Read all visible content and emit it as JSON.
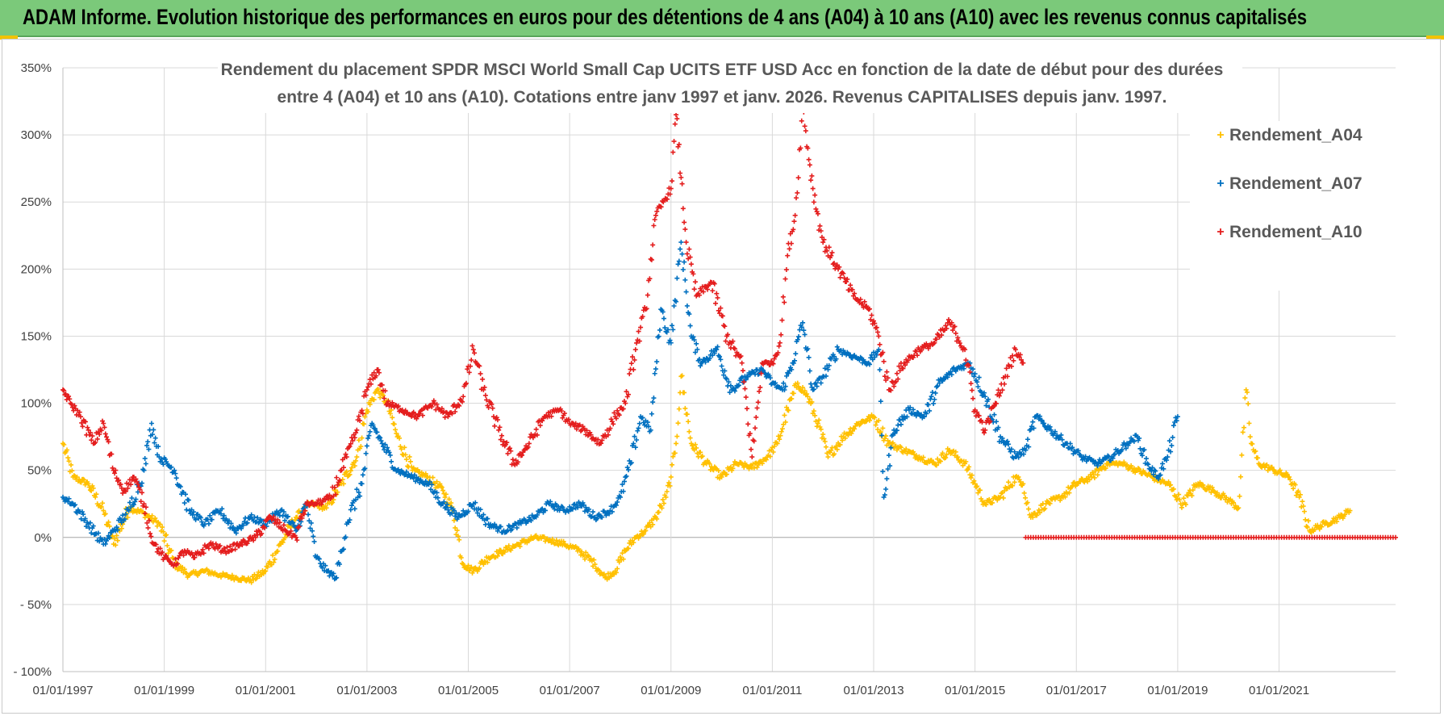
{
  "banner": {
    "title": "ADAM Informe. Evolution historique des performances en euros pour des détentions de 4 ans (A04) à 10 ans (A10) avec les revenus connus capitalisés"
  },
  "chart_data": {
    "type": "scatter",
    "title_line1": "Rendement du placement SPDR MSCI World Small Cap UCITS ETF USD Acc en fonction de la date de début pour des durées",
    "title_line2": "entre 4 (A04) et 10 ans (A10).  Cotations entre janv 1997 et janv. 2026. Revenus CAPITALISES depuis janv. 1997.",
    "xlabel": "",
    "ylabel": "",
    "xlim": [
      1997.0,
      2023.3
    ],
    "ylim": [
      -100,
      350
    ],
    "y_ticks": [
      -100,
      -50,
      0,
      50,
      100,
      150,
      200,
      250,
      300,
      350
    ],
    "y_tick_labels": [
      "- 100%",
      "- 50%",
      "0%",
      "50%",
      "100%",
      "150%",
      "200%",
      "250%",
      "300%",
      "350%"
    ],
    "x_ticks": [
      1997,
      1999,
      2001,
      2003,
      2005,
      2007,
      2009,
      2011,
      2013,
      2015,
      2017,
      2019,
      2021
    ],
    "x_tick_labels": [
      "01/01/1997",
      "01/01/1999",
      "01/01/2001",
      "01/01/2003",
      "01/01/2005",
      "01/01/2007",
      "01/01/2009",
      "01/01/2011",
      "01/01/2013",
      "01/01/2015",
      "01/01/2017",
      "01/01/2019",
      "01/01/2021"
    ],
    "grid": true,
    "legend_position": "top-right",
    "series": [
      {
        "name": "Rendement_A04",
        "color": "#ffc000",
        "x": [
          1997.0,
          1997.2,
          1997.5,
          1997.8,
          1998.0,
          1998.3,
          1998.6,
          1998.9,
          1999.2,
          1999.5,
          1999.8,
          2000.1,
          2000.4,
          2000.7,
          2001.0,
          2001.3,
          2001.6,
          2001.9,
          2002.2,
          2002.5,
          2002.8,
          2003.0,
          2003.2,
          2003.4,
          2003.6,
          2003.9,
          2004.2,
          2004.5,
          2004.7,
          2004.9,
          2005.1,
          2005.4,
          2005.7,
          2006.0,
          2006.3,
          2006.6,
          2006.9,
          2007.2,
          2007.5,
          2007.7,
          2007.9,
          2008.1,
          2008.3,
          2008.5,
          2008.7,
          2008.9,
          2009.0,
          2009.1,
          2009.2,
          2009.4,
          2009.7,
          2010.0,
          2010.3,
          2010.6,
          2010.9,
          2011.1,
          2011.3,
          2011.5,
          2011.7,
          2011.9,
          2012.1,
          2012.4,
          2012.7,
          2013.0,
          2013.3,
          2013.6,
          2013.9,
          2014.2,
          2014.5,
          2014.8,
          2015.0,
          2015.2,
          2015.5,
          2015.8,
          2015.95,
          2016.1,
          2016.4,
          2016.7,
          2017.0,
          2017.3,
          2017.6,
          2017.9,
          2018.2,
          2018.5,
          2018.8,
          2019.1,
          2019.4,
          2019.7,
          2020.0,
          2020.2,
          2020.35,
          2020.45,
          2020.6,
          2020.9,
          2021.2,
          2021.4,
          2021.6,
          2021.9,
          2022.2,
          2022.4
        ],
        "y": [
          70,
          45,
          40,
          20,
          -5,
          22,
          18,
          10,
          -20,
          -28,
          -25,
          -28,
          -30,
          -32,
          -25,
          -5,
          15,
          25,
          22,
          40,
          60,
          95,
          110,
          100,
          75,
          50,
          45,
          35,
          20,
          -20,
          -25,
          -15,
          -10,
          -5,
          0,
          -2,
          -5,
          -10,
          -20,
          -30,
          -25,
          -10,
          0,
          5,
          15,
          30,
          45,
          70,
          120,
          70,
          55,
          45,
          55,
          52,
          60,
          70,
          95,
          115,
          105,
          85,
          60,
          75,
          85,
          90,
          70,
          65,
          60,
          55,
          65,
          55,
          40,
          25,
          30,
          45,
          40,
          15,
          25,
          30,
          40,
          45,
          55,
          55,
          50,
          45,
          40,
          25,
          40,
          35,
          28,
          22,
          110,
          70,
          55,
          50,
          45,
          30,
          5,
          10,
          15,
          20
        ]
      },
      {
        "name": "Rendement_A07",
        "color": "#0070c0",
        "x": [
          1997.0,
          1997.2,
          1997.5,
          1997.8,
          1998.0,
          1998.3,
          1998.6,
          1998.75,
          1998.9,
          1999.2,
          1999.5,
          1999.8,
          2000.1,
          2000.4,
          2000.7,
          2001.0,
          2001.3,
          2001.6,
          2001.8,
          2002.0,
          2002.2,
          2002.4,
          2002.6,
          2002.9,
          2003.1,
          2003.3,
          2003.6,
          2003.9,
          2004.2,
          2004.5,
          2004.8,
          2005.1,
          2005.4,
          2005.7,
          2006.0,
          2006.3,
          2006.6,
          2006.9,
          2007.2,
          2007.5,
          2007.8,
          2008.0,
          2008.2,
          2008.4,
          2008.6,
          2008.8,
          2009.0,
          2009.2,
          2009.4,
          2009.6,
          2009.9,
          2010.2,
          2010.5,
          2010.8,
          2011.0,
          2011.2,
          2011.4,
          2011.6,
          2011.8,
          2012.0,
          2012.3,
          2012.6,
          2012.9,
          2013.1,
          2013.2,
          2013.4,
          2013.7,
          2014.0,
          2014.3,
          2014.6,
          2014.9,
          2015.2,
          2015.5,
          2015.8,
          2016.0,
          2016.2,
          2016.5,
          2016.8,
          2017.1,
          2017.4,
          2017.7,
          2018.0,
          2018.2,
          2018.4,
          2018.6,
          2018.8,
          2019.0
        ],
        "y": [
          30,
          25,
          10,
          -5,
          5,
          20,
          50,
          85,
          60,
          50,
          20,
          10,
          20,
          5,
          15,
          10,
          20,
          5,
          25,
          -15,
          -25,
          -30,
          10,
          40,
          85,
          70,
          50,
          45,
          40,
          25,
          15,
          25,
          10,
          5,
          10,
          15,
          25,
          20,
          25,
          15,
          20,
          30,
          55,
          90,
          80,
          170,
          145,
          220,
          150,
          130,
          140,
          110,
          120,
          125,
          115,
          110,
          130,
          160,
          110,
          120,
          140,
          135,
          130,
          140,
          30,
          80,
          95,
          90,
          115,
          125,
          130,
          105,
          75,
          60,
          65,
          90,
          80,
          70,
          60,
          55,
          60,
          70,
          75,
          55,
          45,
          60,
          90
        ]
      },
      {
        "name": "Rendement_A10",
        "color": "#e41e1e",
        "x": [
          1997.0,
          1997.15,
          1997.35,
          1997.6,
          1997.8,
          1998.0,
          1998.2,
          1998.4,
          1998.6,
          1998.8,
          1999.0,
          1999.2,
          1999.4,
          1999.6,
          1999.9,
          2000.2,
          2000.5,
          2000.8,
          2001.1,
          2001.4,
          2001.6,
          2001.8,
          2002.0,
          2002.3,
          2002.6,
          2002.8,
          2003.0,
          2003.2,
          2003.4,
          2003.7,
          2004.0,
          2004.3,
          2004.6,
          2004.9,
          2005.1,
          2005.3,
          2005.6,
          2005.9,
          2006.2,
          2006.5,
          2006.8,
          2007.0,
          2007.3,
          2007.6,
          2007.9,
          2008.1,
          2008.3,
          2008.5,
          2008.7,
          2008.85,
          2009.0,
          2009.1,
          2009.3,
          2009.5,
          2009.8,
          2010.1,
          2010.4,
          2010.6,
          2010.8,
          2011.0,
          2011.15,
          2011.3,
          2011.45,
          2011.6,
          2011.8,
          2012.0,
          2012.3,
          2012.6,
          2012.9,
          2013.1,
          2013.3,
          2013.6,
          2013.9,
          2014.2,
          2014.5,
          2014.8,
          2015.0,
          2015.2,
          2015.4,
          2015.6,
          2015.8,
          2015.95
        ],
        "y": [
          110,
          100,
          90,
          70,
          85,
          50,
          35,
          45,
          25,
          -5,
          -15,
          -20,
          -10,
          -15,
          -5,
          -10,
          -5,
          0,
          15,
          5,
          0,
          25,
          25,
          30,
          60,
          80,
          110,
          125,
          100,
          95,
          90,
          100,
          90,
          105,
          140,
          110,
          80,
          55,
          70,
          90,
          95,
          85,
          80,
          70,
          90,
          100,
          140,
          170,
          240,
          250,
          260,
          315,
          220,
          180,
          190,
          150,
          130,
          60,
          130,
          130,
          145,
          210,
          240,
          320,
          260,
          220,
          200,
          180,
          170,
          150,
          110,
          130,
          140,
          145,
          160,
          140,
          95,
          80,
          100,
          120,
          140,
          130
        ]
      },
      {
        "name": "Rendement_A10_flat",
        "color": "#e41e1e",
        "x_range": [
          2016.0,
          2023.3
        ],
        "y": 0
      }
    ],
    "legend": [
      "Rendement_A04",
      "Rendement_A07",
      "Rendement_A10"
    ]
  }
}
